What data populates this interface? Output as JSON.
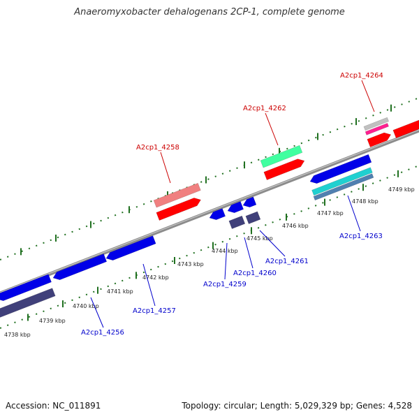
{
  "title": "Anaeromyxobacter dehalogenans 2CP-1, complete genome",
  "accession": "Accession: NC_011891",
  "summary": "Topology: circular; Length: 5,029,329 bp; Genes: 4,528",
  "colors": {
    "forward_gene": "#ff0000",
    "forward_cds": "#f08080",
    "forward_rrna": "#40ffa0",
    "reverse_gene": "#0000e8",
    "reverse_cds": "#40407a",
    "reverse_misc": "#20d0d0",
    "forward_label": "#cc0000",
    "reverse_label": "#0000cc",
    "backbone": "#8c8c8c",
    "tick": "#207020"
  },
  "ticks": [
    {
      "label": "4738 kbp"
    },
    {
      "label": "4739 kbp"
    },
    {
      "label": "4740 kbp"
    },
    {
      "label": "4741 kbp"
    },
    {
      "label": "4742 kbp"
    },
    {
      "label": "4743 kbp"
    },
    {
      "label": "4744 kbp"
    },
    {
      "label": "4745 kbp"
    },
    {
      "label": "4746 kbp"
    },
    {
      "label": "4747 kbp"
    },
    {
      "label": "4748 kbp"
    },
    {
      "label": "4749 kbp"
    }
  ],
  "genes": [
    {
      "label": "A2cp1_4256",
      "strand": "reverse"
    },
    {
      "label": "A2cp1_4257",
      "strand": "reverse"
    },
    {
      "label": "A2cp1_4258",
      "strand": "forward"
    },
    {
      "label": "A2cp1_4259",
      "strand": "reverse"
    },
    {
      "label": "A2cp1_4260",
      "strand": "reverse"
    },
    {
      "label": "A2cp1_4261",
      "strand": "reverse"
    },
    {
      "label": "A2cp1_4262",
      "strand": "forward"
    },
    {
      "label": "A2cp1_4263",
      "strand": "reverse"
    },
    {
      "label": "A2cp1_4264",
      "strand": "forward"
    }
  ]
}
